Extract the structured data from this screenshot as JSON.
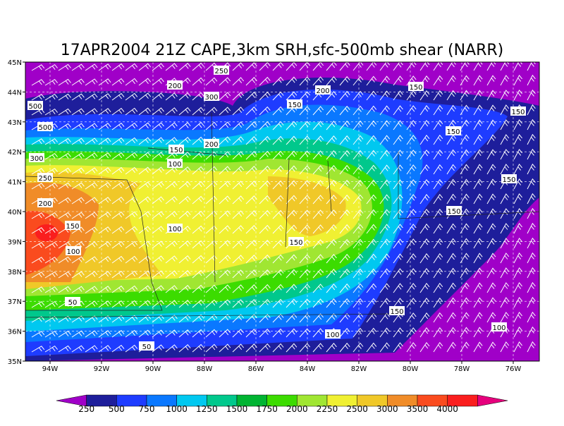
{
  "header": {
    "title": "17APR2004 21Z CAPE,3km SRH,sfc-500mb shear (NARR)"
  },
  "lat_labels": [
    "45N",
    "44N",
    "43N",
    "42N",
    "41N",
    "40N",
    "39N",
    "38N",
    "37N",
    "36N",
    "35N"
  ],
  "lon_labels": [
    "94W",
    "92W",
    "90W",
    "88W",
    "86W",
    "84W",
    "82W",
    "80W",
    "78W",
    "76W"
  ],
  "colorbar": {
    "labels": [
      "250",
      "500",
      "750",
      "1000",
      "1250",
      "1500",
      "1750",
      "2000",
      "2250",
      "2500",
      "3000",
      "3500",
      "4000"
    ],
    "colors": [
      "#a000c8",
      "#1e1e9b",
      "#1e3cff",
      "#0a78ff",
      "#00c8f0",
      "#00c88c",
      "#00b432",
      "#3cdc00",
      "#a0e632",
      "#f0f032",
      "#f0c828",
      "#f08c28",
      "#fa4b1e",
      "#fa1e1e",
      "#e6007d"
    ]
  },
  "contour_labels": [
    "250",
    "200",
    "300",
    "500",
    "500",
    "300",
    "250",
    "200",
    "150",
    "100",
    "50",
    "50",
    "200",
    "150",
    "100",
    "100",
    "150",
    "200",
    "150",
    "150",
    "150",
    "150",
    "150",
    "150",
    "100",
    "100",
    "150"
  ]
}
